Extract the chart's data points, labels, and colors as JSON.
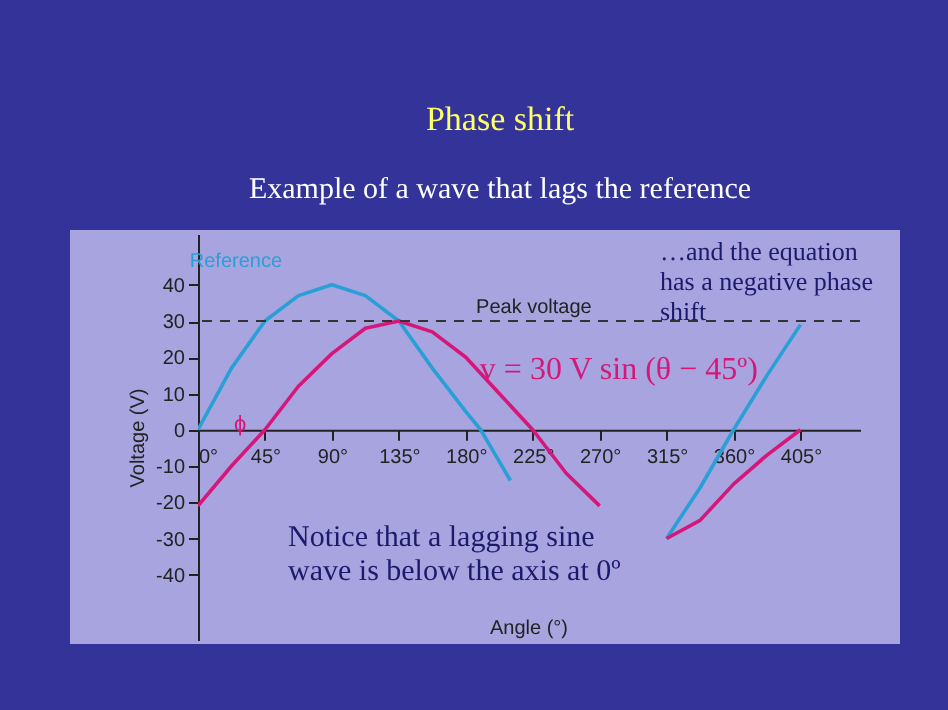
{
  "chart_data": {
    "type": "line",
    "title": "Phase shift",
    "subtitle": "Example of a wave that lags the reference",
    "ylabel": "Voltage (V)",
    "xlabel": "Angle (°)",
    "xlim": [
      0,
      445
    ],
    "ylim": [
      -58,
      54
    ],
    "xticks": [
      {
        "value": 0,
        "label": "0°"
      },
      {
        "value": 45,
        "label": "45°"
      },
      {
        "value": 90,
        "label": "90°"
      },
      {
        "value": 135,
        "label": "135°"
      },
      {
        "value": 180,
        "label": "180°"
      },
      {
        "value": 225,
        "label": "225°"
      },
      {
        "value": 270,
        "label": "270°"
      },
      {
        "value": 315,
        "label": "315°"
      },
      {
        "value": 360,
        "label": "360°"
      },
      {
        "value": 405,
        "label": "405°"
      }
    ],
    "yticks": [
      -40,
      -30,
      -20,
      -10,
      0,
      10,
      20,
      30,
      40
    ],
    "grid": false,
    "series": [
      {
        "name": "Reference",
        "color": "#2a9fd6",
        "x": [
          0,
          22.5,
          45,
          67.5,
          90,
          112.5,
          135,
          157.5,
          180,
          190,
          200,
          210,
          220,
          300,
          315,
          337.5,
          360,
          382.5,
          405
        ],
        "values": [
          0,
          17,
          30,
          37,
          40,
          37,
          30,
          17,
          5,
          0,
          -7,
          -14,
          null,
          null,
          -30,
          -16,
          0,
          15,
          29
        ]
      },
      {
        "name": "v = 30 V sin (θ − 45º)",
        "color": "#d6177a",
        "x": [
          0,
          22.5,
          45,
          67.5,
          90,
          112.5,
          135,
          157.5,
          180,
          202.5,
          225,
          247.5,
          270,
          280,
          305,
          315,
          337.5,
          360,
          382.5,
          405
        ],
        "values": [
          -21,
          -10,
          0,
          12,
          21,
          28,
          30,
          27,
          20,
          10,
          0,
          -12,
          -21,
          null,
          null,
          -30,
          -25,
          -15,
          -7,
          0
        ]
      }
    ],
    "ref_lines": [
      {
        "axis": "y",
        "value": 30,
        "label": "Peak voltage",
        "line_style": "dashed"
      }
    ],
    "annotations": [
      "ϕ",
      "Notice that a lagging sine wave is below the axis at 0º",
      "…and the equation has a negative phase shift"
    ]
  }
}
